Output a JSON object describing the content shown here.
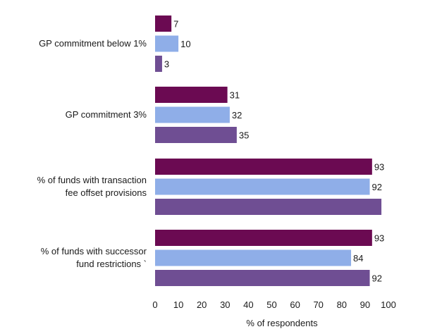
{
  "chart_data": {
    "type": "bar",
    "orientation": "horizontal",
    "categories": [
      [
        "GP commitment below 1%"
      ],
      [
        "GP commitment 3%"
      ],
      [
        "% of funds with transaction",
        "fee offset provisions"
      ],
      [
        "% of funds with successor",
        "fund restrictions `"
      ]
    ],
    "series": [
      {
        "color": "#6b0a52",
        "values": [
          7,
          31,
          93,
          93
        ],
        "labels": [
          "7",
          "31",
          "93",
          "93"
        ]
      },
      {
        "color": "#8faee8",
        "values": [
          10,
          32,
          92,
          84
        ],
        "labels": [
          "10",
          "32",
          "92",
          "84"
        ]
      },
      {
        "color": "#6f4e93",
        "values": [
          3,
          35,
          97,
          92
        ],
        "labels": [
          "3",
          "35",
          "",
          "92"
        ]
      }
    ],
    "xlim": [
      0,
      100
    ],
    "xticks": [
      0,
      10,
      20,
      30,
      40,
      50,
      60,
      70,
      80,
      90,
      100
    ],
    "xlabel": "% of respondents",
    "grid": false,
    "legend": "none"
  }
}
